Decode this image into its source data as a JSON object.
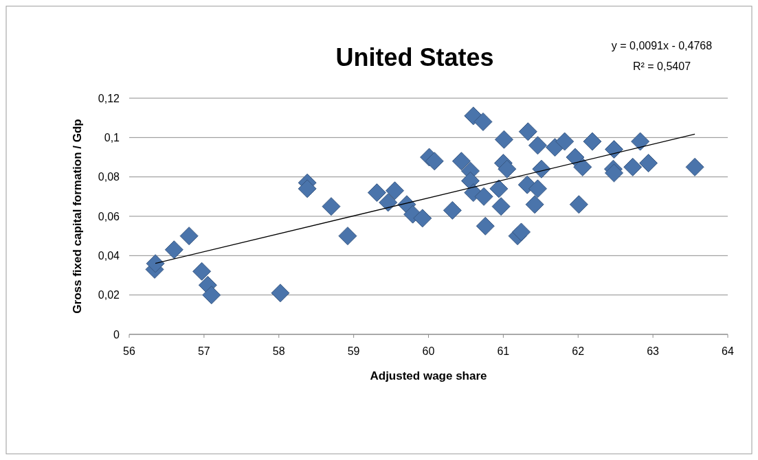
{
  "chart_data": {
    "type": "scatter",
    "title": "United States",
    "xlabel": "Adjusted wage share",
    "ylabel": "Gross fixed capital formation  / Gdp",
    "annotations": [
      "y = 0,0091x  - 0,4768",
      "R² = 0,5407"
    ],
    "xlim": [
      56,
      64
    ],
    "xticks": [
      56,
      57,
      58,
      59,
      60,
      61,
      62,
      63,
      64
    ],
    "ylim": [
      0,
      0.12
    ],
    "yticks": [
      {
        "value": 0,
        "label": "0"
      },
      {
        "value": 0.02,
        "label": "0,02"
      },
      {
        "value": 0.04,
        "label": "0,04"
      },
      {
        "value": 0.06,
        "label": "0,06"
      },
      {
        "value": 0.08,
        "label": "0,08"
      },
      {
        "value": 0.1,
        "label": "0,1"
      },
      {
        "value": 0.12,
        "label": "0,12"
      }
    ],
    "grid": "y",
    "series": [
      {
        "color": "#4a74ab",
        "marker": "diamond",
        "x": [
          56.34,
          56.35,
          56.6,
          56.8,
          56.97,
          57.05,
          57.1,
          58.02,
          58.38,
          58.38,
          58.7,
          58.92,
          59.31,
          59.46,
          59.55,
          59.71,
          59.79,
          59.92,
          60.6,
          60.73,
          61.01,
          61.33,
          61.46,
          61.69,
          61.82,
          62.19,
          62.48,
          62.83,
          60.01,
          60.08,
          60.44,
          60.56,
          61.0,
          61.05,
          61.51,
          61.96,
          62.06,
          62.47,
          62.48,
          62.73,
          62.94,
          63.56,
          60.56,
          60.6,
          60.74,
          60.94,
          60.97,
          61.32,
          61.46,
          61.42,
          62.01,
          60.32,
          60.76,
          61.19,
          61.24
        ],
        "values": [
          0.033,
          0.036,
          0.043,
          0.05,
          0.032,
          0.025,
          0.02,
          0.021,
          0.077,
          0.074,
          0.065,
          0.05,
          0.072,
          0.067,
          0.073,
          0.066,
          0.061,
          0.059,
          0.111,
          0.108,
          0.099,
          0.103,
          0.096,
          0.095,
          0.098,
          0.098,
          0.094,
          0.098,
          0.09,
          0.088,
          0.088,
          0.083,
          0.087,
          0.084,
          0.084,
          0.09,
          0.085,
          0.084,
          0.082,
          0.085,
          0.087,
          0.085,
          0.078,
          0.072,
          0.07,
          0.074,
          0.065,
          0.076,
          0.074,
          0.066,
          0.066,
          0.063,
          0.055,
          0.05,
          0.052
        ]
      },
      {
        "type": "line",
        "color": "#000000",
        "marker": "none",
        "x": [
          56.35,
          63.56
        ],
        "values": [
          0.0361,
          0.1017
        ]
      }
    ]
  }
}
